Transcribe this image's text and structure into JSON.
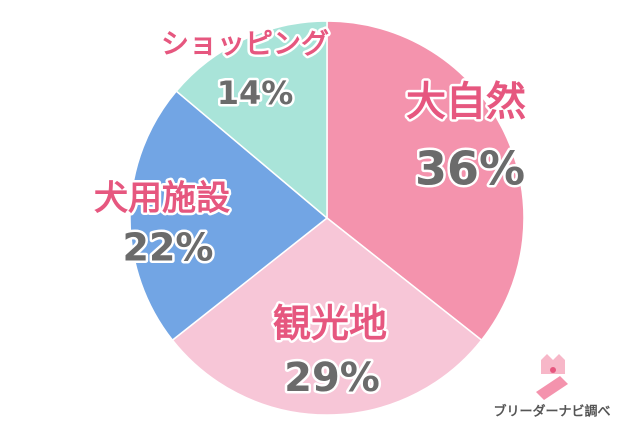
{
  "chart_data": {
    "type": "pie",
    "categories": [
      "大自然",
      "観光地",
      "犬用施設",
      "ショッピング"
    ],
    "values": [
      36,
      29,
      22,
      14
    ],
    "value_labels": [
      "36%",
      "29%",
      "22%",
      "14%"
    ],
    "colors": [
      "#f493ad",
      "#f7c6d7",
      "#72a5e4",
      "#a9e4d9"
    ],
    "source": "ブリーダーナビ調べ"
  }
}
